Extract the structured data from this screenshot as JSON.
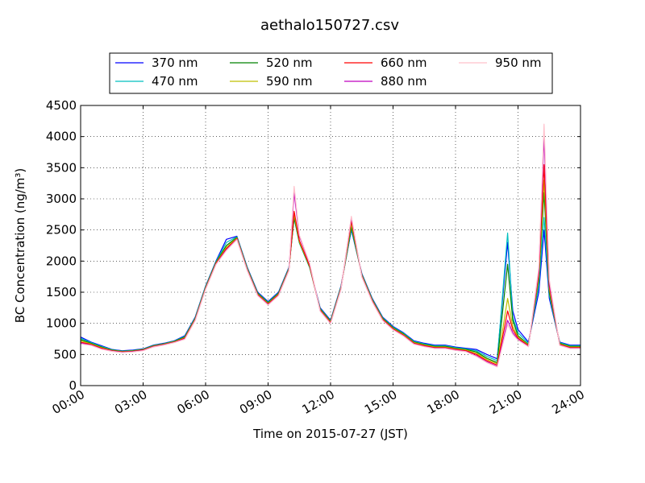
{
  "chart_data": {
    "type": "line",
    "title": "aethalo150727.csv",
    "xlabel": "Time on 2015-07-27 (JST)",
    "ylabel": "BC Concentration (ng/m³)",
    "ylim": [
      0,
      4500
    ],
    "xlim": [
      "00:00",
      "24:00"
    ],
    "x_ticks": [
      "00:00",
      "03:00",
      "06:00",
      "09:00",
      "12:00",
      "15:00",
      "18:00",
      "21:00",
      "24:00"
    ],
    "y_ticks": [
      "0",
      "500",
      "1000",
      "1500",
      "2000",
      "2500",
      "3000",
      "3500",
      "4000",
      "4500"
    ],
    "grid": true,
    "legend_placement": "top, above plot",
    "x": [
      "00:00",
      "00:30",
      "01:00",
      "01:30",
      "02:00",
      "02:30",
      "03:00",
      "03:30",
      "04:00",
      "04:30",
      "05:00",
      "05:30",
      "06:00",
      "06:30",
      "07:00",
      "07:30",
      "08:00",
      "08:30",
      "09:00",
      "09:30",
      "10:00",
      "10:15",
      "10:30",
      "11:00",
      "11:30",
      "12:00",
      "12:30",
      "13:00",
      "13:30",
      "14:00",
      "14:30",
      "15:00",
      "15:30",
      "16:00",
      "16:30",
      "17:00",
      "17:30",
      "18:00",
      "18:30",
      "19:00",
      "19:30",
      "20:00",
      "20:30",
      "20:45",
      "21:00",
      "21:30",
      "22:00",
      "22:15",
      "22:30",
      "23:00",
      "23:30",
      "24:00"
    ],
    "series": [
      {
        "name": "370 nm",
        "color": "#0000ff",
        "values": [
          780,
          700,
          640,
          580,
          560,
          570,
          590,
          650,
          680,
          720,
          800,
          1100,
          1600,
          2000,
          2350,
          2400,
          1900,
          1500,
          1350,
          1500,
          1900,
          2700,
          2300,
          1900,
          1250,
          1050,
          1600,
          2500,
          1800,
          1400,
          1100,
          950,
          850,
          720,
          680,
          650,
          650,
          620,
          600,
          580,
          500,
          430,
          2300,
          1200,
          900,
          700,
          1500,
          2500,
          1400,
          700,
          650,
          650
        ]
      },
      {
        "name": "470 nm",
        "color": "#00bfbf",
        "values": [
          760,
          690,
          630,
          575,
          555,
          565,
          585,
          645,
          675,
          715,
          790,
          1090,
          1590,
          1990,
          2300,
          2390,
          1890,
          1490,
          1340,
          1490,
          1890,
          2690,
          2290,
          1890,
          1240,
          1040,
          1590,
          2520,
          1790,
          1390,
          1090,
          940,
          840,
          710,
          670,
          640,
          640,
          610,
          590,
          560,
          470,
          400,
          2450,
          1100,
          850,
          680,
          1600,
          2700,
          1450,
          690,
          640,
          640
        ]
      },
      {
        "name": "520 nm",
        "color": "#008000",
        "values": [
          740,
          680,
          620,
          570,
          550,
          560,
          580,
          640,
          670,
          710,
          780,
          1080,
          1580,
          1980,
          2250,
          2380,
          1880,
          1480,
          1330,
          1480,
          1880,
          2700,
          2300,
          1900,
          1230,
          1030,
          1580,
          2550,
          1780,
          1380,
          1080,
          930,
          830,
          700,
          660,
          630,
          630,
          600,
          580,
          540,
          440,
          370,
          1950,
          1050,
          800,
          660,
          1700,
          3100,
          1500,
          680,
          630,
          630
        ]
      },
      {
        "name": "590 nm",
        "color": "#bfbf00",
        "values": [
          720,
          670,
          610,
          565,
          545,
          555,
          575,
          635,
          665,
          705,
          770,
          1070,
          1570,
          1970,
          2220,
          2370,
          1870,
          1470,
          1320,
          1470,
          1870,
          2750,
          2310,
          1910,
          1220,
          1020,
          1570,
          2600,
          1770,
          1370,
          1070,
          920,
          820,
          690,
          650,
          620,
          620,
          590,
          570,
          520,
          420,
          350,
          1400,
          950,
          780,
          650,
          1750,
          3300,
          1550,
          670,
          620,
          620
        ]
      },
      {
        "name": "660 nm",
        "color": "#ff0000",
        "values": [
          700,
          660,
          600,
          560,
          540,
          550,
          570,
          630,
          660,
          700,
          760,
          1060,
          1560,
          1960,
          2200,
          2360,
          1860,
          1460,
          1310,
          1460,
          1860,
          2800,
          2330,
          1920,
          1210,
          1010,
          1560,
          2650,
          1760,
          1360,
          1060,
          910,
          810,
          680,
          640,
          610,
          610,
          580,
          560,
          500,
          400,
          330,
          1200,
          900,
          760,
          640,
          1800,
          3550,
          1600,
          660,
          610,
          610
        ]
      },
      {
        "name": "880 nm",
        "color": "#bf00bf",
        "values": [
          680,
          650,
          590,
          555,
          535,
          545,
          565,
          625,
          655,
          695,
          750,
          1050,
          1550,
          1950,
          2180,
          2350,
          1850,
          1450,
          1300,
          1450,
          1850,
          3100,
          2400,
          1950,
          1200,
          1000,
          1550,
          2700,
          1750,
          1350,
          1050,
          900,
          800,
          670,
          630,
          600,
          600,
          570,
          550,
          480,
          380,
          310,
          1050,
          850,
          740,
          630,
          1850,
          4000,
          1650,
          650,
          600,
          600
        ]
      },
      {
        "name": "950 nm",
        "color": "#ffc0cb",
        "values": [
          670,
          645,
          585,
          550,
          530,
          540,
          560,
          620,
          650,
          690,
          745,
          1045,
          1545,
          1945,
          2170,
          2345,
          1845,
          1445,
          1295,
          1445,
          1845,
          3200,
          2420,
          1960,
          1195,
          995,
          1545,
          2720,
          1745,
          1345,
          1045,
          895,
          795,
          665,
          625,
          595,
          595,
          565,
          545,
          470,
          370,
          300,
          980,
          820,
          730,
          625,
          1900,
          4200,
          1700,
          645,
          595,
          595
        ]
      }
    ]
  }
}
